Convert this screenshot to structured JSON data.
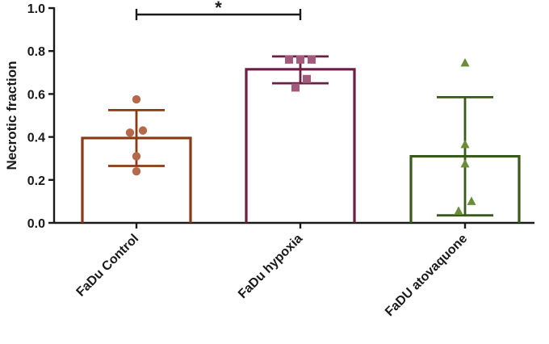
{
  "chart_data": {
    "type": "bar",
    "ylabel": "Necrotic fraction",
    "ylim": [
      0,
      1.0
    ],
    "yticks": [
      "0.0",
      "0.2",
      "0.4",
      "0.6",
      "0.8",
      "1.0"
    ],
    "categories": [
      "FaDu Control",
      "FaDu hypoxia",
      "FaDU atovaquone"
    ],
    "colors": [
      "#8b3a14",
      "#6e1d44",
      "#3a5a1a"
    ],
    "point_colors": [
      "#b5694a",
      "#a45a7c",
      "#6b8d37"
    ],
    "marker_shapes": [
      "circle",
      "square",
      "triangle"
    ],
    "values": [
      0.395,
      0.715,
      0.31
    ],
    "error": [
      [
        0.265,
        0.525
      ],
      [
        0.65,
        0.775
      ],
      [
        0.035,
        0.585
      ]
    ],
    "points": [
      [
        0.575,
        0.43,
        0.42,
        0.31,
        0.24
      ],
      [
        0.76,
        0.76,
        0.76,
        0.67,
        0.63
      ],
      [
        0.745,
        0.365,
        0.275,
        0.1,
        0.055
      ]
    ],
    "significance": [
      {
        "between": [
          0,
          1
        ],
        "label": "*"
      }
    ]
  }
}
